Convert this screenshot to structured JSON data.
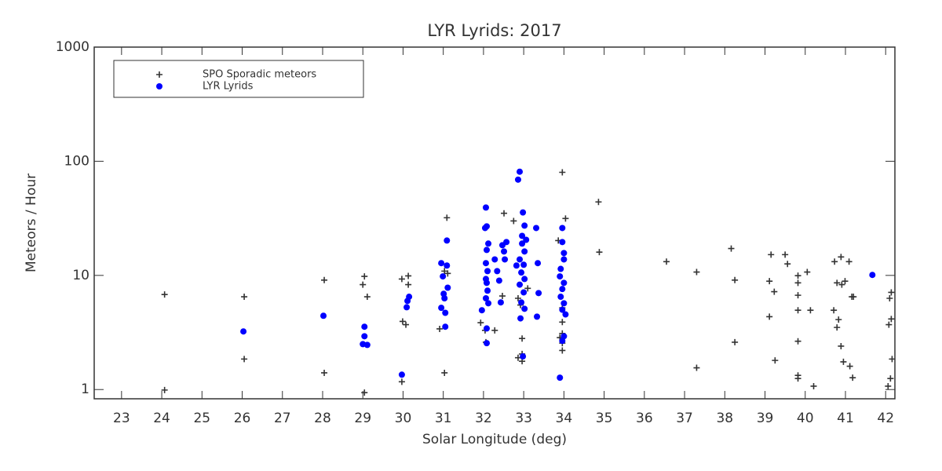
{
  "chart_data": {
    "type": "scatter",
    "title": "LYR Lyrids: 2017",
    "x_label": "Solar Longitude (deg)",
    "y_label": "Meteors / Hour",
    "log_y": true,
    "legend": "upper left",
    "xlim": [
      22.32,
      42.23
    ],
    "ylim": [
      0.83,
      1000
    ],
    "xticks": [
      23,
      24,
      25,
      26,
      27,
      28,
      29,
      30,
      31,
      32,
      33,
      34,
      35,
      36,
      37,
      38,
      39,
      40,
      41,
      42
    ],
    "yticks": [
      1,
      10,
      100,
      1000
    ],
    "series": [
      {
        "name": "SPO Sporadic meteors",
        "color": "#333333",
        "marker": "plus",
        "x": [
          24.07,
          24.07,
          26.05,
          26.05,
          28.04,
          28.04,
          29.04,
          29.0,
          29.11,
          29.04,
          29.97,
          30.13,
          30.13,
          29.99,
          30.07,
          29.97,
          31.09,
          31.03,
          31.11,
          30.91,
          31.03,
          31.93,
          32.04,
          32.06,
          32.28,
          32.51,
          32.47,
          32.75,
          32.86,
          32.92,
          32.96,
          32.96,
          32.96,
          32.86,
          33.1,
          33.96,
          34.04,
          33.86,
          33.96,
          33.96,
          33.96,
          33.96,
          33.96,
          33.9,
          34.86,
          34.88,
          36.55,
          37.3,
          37.3,
          38.16,
          38.25,
          38.25,
          39.15,
          39.11,
          39.23,
          39.11,
          39.25,
          39.5,
          39.56,
          39.82,
          39.82,
          39.82,
          39.82,
          39.82,
          39.82,
          39.82,
          40.05,
          40.13,
          40.21,
          40.73,
          40.89,
          41.09,
          40.79,
          40.91,
          40.99,
          40.83,
          40.71,
          40.79,
          40.89,
          40.95,
          41.11,
          41.16,
          41.2,
          41.18,
          42.14,
          42.1,
          42.14,
          42.08,
          42.16,
          42.12,
          42.06
        ],
        "values": [
          6.8,
          0.99,
          6.5,
          1.85,
          9.1,
          1.4,
          9.8,
          8.3,
          6.5,
          0.94,
          9.3,
          9.9,
          8.3,
          3.95,
          3.7,
          1.17,
          32,
          10.9,
          10.4,
          3.4,
          1.4,
          3.85,
          3.3,
          2.6,
          3.3,
          35,
          6.6,
          30,
          6.3,
          5.5,
          2.8,
          2.05,
          1.77,
          1.9,
          7.7,
          80,
          31.5,
          20.2,
          5.2,
          3.9,
          3.1,
          2.55,
          2.2,
          2.85,
          44,
          16,
          13.2,
          10.7,
          1.55,
          17.2,
          9.1,
          2.6,
          15.2,
          8.9,
          7.2,
          4.35,
          1.8,
          15.2,
          12.6,
          8.6,
          9.95,
          6.7,
          4.95,
          2.65,
          1.33,
          1.25,
          10.7,
          4.95,
          1.07,
          13.2,
          14.5,
          13.2,
          8.6,
          8.3,
          8.9,
          4.1,
          4.95,
          3.5,
          2.4,
          1.75,
          1.6,
          6.5,
          6.5,
          1.27,
          7.1,
          6.3,
          4.15,
          3.7,
          1.85,
          1.25,
          1.07
        ]
      },
      {
        "name": "LYR Lyrids",
        "color": "#0000ff",
        "marker": "circle",
        "x": [
          26.03,
          28.02,
          29.04,
          29.04,
          29.0,
          29.11,
          29.97,
          30.11,
          30.15,
          30.09,
          30.95,
          31.09,
          31.09,
          30.99,
          31.11,
          31.01,
          31.03,
          30.95,
          31.05,
          31.05,
          32.06,
          32.08,
          32.04,
          32.12,
          32.08,
          32.06,
          32.1,
          32.06,
          32.08,
          32.1,
          32.06,
          32.12,
          31.96,
          32.08,
          32.08,
          32.28,
          32.34,
          32.39,
          32.47,
          32.51,
          32.57,
          32.43,
          32.53,
          32.86,
          32.9,
          32.98,
          33.02,
          32.96,
          32.96,
          33.02,
          32.9,
          33.0,
          32.94,
          33.02,
          32.9,
          33.0,
          32.94,
          33.02,
          32.92,
          32.98,
          32.82,
          33.06,
          33.31,
          33.35,
          33.37,
          33.33,
          33.96,
          33.96,
          34.0,
          34.0,
          33.92,
          33.9,
          34.0,
          33.96,
          33.92,
          34.0,
          33.96,
          34.04,
          34.0,
          33.96,
          33.9,
          41.67
        ],
        "values": [
          3.23,
          4.43,
          3.55,
          2.93,
          2.5,
          2.46,
          1.35,
          5.98,
          6.5,
          5.26,
          12.8,
          12.2,
          20.2,
          9.8,
          7.8,
          6.9,
          6.3,
          5.2,
          4.7,
          3.55,
          39.3,
          26.9,
          26,
          19,
          16.7,
          12.8,
          10.9,
          9.3,
          8.6,
          7.35,
          6.3,
          5.7,
          4.95,
          3.43,
          2.55,
          13.8,
          10.9,
          9,
          18.4,
          16.2,
          19.6,
          5.8,
          13.8,
          69,
          81,
          35.6,
          27.3,
          22.2,
          19,
          16.2,
          13.8,
          12.4,
          10.6,
          9.3,
          8.3,
          7.1,
          5.8,
          5.1,
          4.2,
          1.95,
          12.2,
          20.5,
          26,
          12.8,
          7,
          4.35,
          26,
          19.6,
          15.7,
          13.8,
          11.4,
          9.8,
          8.6,
          7.6,
          6.5,
          5.7,
          5.0,
          4.55,
          2.93,
          2.67,
          1.27,
          10.1
        ]
      }
    ]
  }
}
